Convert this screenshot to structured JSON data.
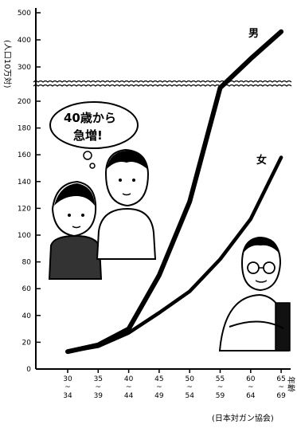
{
  "chart_data": {
    "type": "line",
    "ylabel": "(人口10万対)",
    "xlabel": "年齢",
    "source": "(日本対ガン協会)",
    "ylim": [
      0,
      500
    ],
    "y_axis_break": [
      220,
      280
    ],
    "categories": [
      "30-34",
      "35-39",
      "40-44",
      "45-49",
      "50-54",
      "55-59",
      "60-64",
      "65-69"
    ],
    "x_ticks_top": [
      "30",
      "35",
      "40",
      "45",
      "50",
      "55",
      "60",
      "65"
    ],
    "x_ticks_sep": "~",
    "x_ticks_bottom": [
      "34",
      "39",
      "44",
      "49",
      "54",
      "59",
      "64",
      "69"
    ],
    "y_ticks": [
      0,
      20,
      40,
      60,
      80,
      100,
      120,
      140,
      160,
      180,
      200,
      300,
      400,
      500
    ],
    "series": [
      {
        "name": "男",
        "values": [
          13,
          18,
          30,
          70,
          125,
          210,
          330,
          430
        ]
      },
      {
        "name": "女",
        "values": [
          13,
          17,
          27,
          42,
          58,
          82,
          112,
          158
        ]
      }
    ],
    "annotations": {
      "bubble_top": "40歳から",
      "bubble_bottom": "急増!"
    },
    "colors": {
      "line": "#000000",
      "background": "#ffffff"
    }
  }
}
